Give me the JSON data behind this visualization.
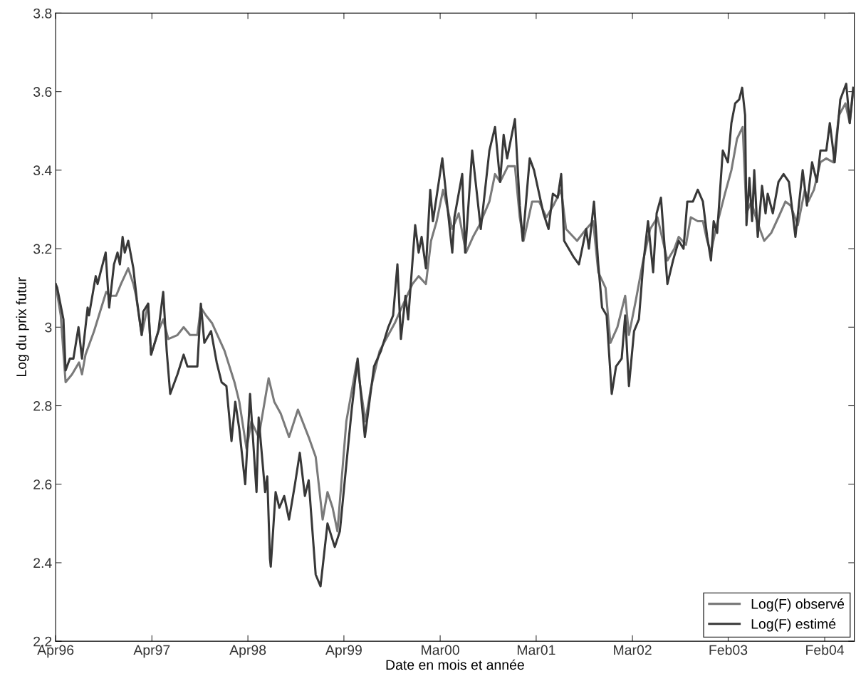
{
  "chart_data": {
    "type": "line",
    "xlabel": "Date en mois et année",
    "ylabel": "Log du prix futur",
    "xlim": [
      "1996-04-24",
      "2004-06-11"
    ],
    "ylim": [
      2.2,
      3.8
    ],
    "xticks": [
      {
        "value": "1996-04-24",
        "label": "Apr96"
      },
      {
        "value": "1997-04-17",
        "label": "Apr97"
      },
      {
        "value": "1998-04-09",
        "label": "Apr98"
      },
      {
        "value": "1999-04-01",
        "label": "Apr99"
      },
      {
        "value": "2000-03-24",
        "label": "Mar00"
      },
      {
        "value": "2001-03-16",
        "label": "Mar01"
      },
      {
        "value": "2002-03-09",
        "label": "Mar02"
      },
      {
        "value": "2003-02-28",
        "label": "Feb03"
      },
      {
        "value": "2004-02-22",
        "label": "Feb04"
      }
    ],
    "yticks": [
      2.2,
      2.4,
      2.6,
      2.8,
      3,
      3.2,
      3.4,
      3.6,
      3.8
    ],
    "grid": false,
    "legend": "bottom right",
    "marker": "none",
    "line_style": "solid",
    "series": [
      {
        "name": "Log(F) observé",
        "color": "#7a7a7a",
        "x": [
          "1996-04-24",
          "1996-05-13",
          "1996-05-31",
          "1996-06-24",
          "1996-07-20",
          "1996-07-31",
          "1996-08-13",
          "1996-09-14",
          "1996-10-29",
          "1996-11-11",
          "1996-12-05",
          "1996-12-23",
          "1997-01-19",
          "1997-02-07",
          "1997-02-17",
          "1997-03-10",
          "1997-04-03",
          "1997-04-14",
          "1997-05-11",
          "1997-05-29",
          "1997-06-17",
          "1997-07-21",
          "1997-08-13",
          "1997-09-06",
          "1997-10-03",
          "1997-10-16",
          "1997-11-04",
          "1997-11-27",
          "1998-01-12",
          "1998-02-18",
          "1998-03-08",
          "1998-04-04",
          "1998-04-22",
          "1998-05-19",
          "1998-06-25",
          "1998-07-16",
          "1998-08-09",
          "1998-09-09",
          "1998-10-12",
          "1998-11-21",
          "1998-12-17",
          "1999-01-12",
          "1999-01-30",
          "1999-02-18",
          "1999-03-08",
          "1999-04-10",
          "1999-05-19",
          "1999-06-20",
          "1999-07-09",
          "1999-08-12",
          "1999-09-13",
          "1999-10-07",
          "1999-11-02",
          "1999-12-12",
          "2000-01-04",
          "2000-01-31",
          "2000-02-19",
          "2000-03-11",
          "2000-04-04",
          "2000-05-08",
          "2000-06-01",
          "2000-06-28",
          "2000-07-24",
          "2000-08-17",
          "2000-09-23",
          "2000-10-14",
          "2000-11-02",
          "2000-12-01",
          "2000-12-27",
          "2001-01-14",
          "2001-01-28",
          "2001-03-01",
          "2001-03-27",
          "2001-04-23",
          "2001-05-19",
          "2001-06-17",
          "2001-07-05",
          "2001-08-15",
          "2001-09-18",
          "2001-10-14",
          "2001-11-02",
          "2001-11-29",
          "2001-12-17",
          "2002-01-12",
          "2002-02-10",
          "2002-02-24",
          "2002-03-22",
          "2002-04-18",
          "2002-05-14",
          "2002-06-10",
          "2002-07-17",
          "2002-08-12",
          "2002-08-28",
          "2002-09-24",
          "2002-10-12",
          "2002-11-07",
          "2002-11-26",
          "2002-12-12",
          "2002-12-26",
          "2003-01-13",
          "2003-02-16",
          "2003-03-12",
          "2003-04-02",
          "2003-04-23",
          "2003-05-07",
          "2003-05-25",
          "2003-06-15",
          "2003-07-12",
          "2003-08-07",
          "2003-09-03",
          "2003-09-29",
          "2003-10-18",
          "2003-11-14",
          "2003-12-10",
          "2003-12-23",
          "2004-01-13",
          "2004-02-06",
          "2004-02-28",
          "2004-03-25",
          "2004-04-15",
          "2004-05-09",
          "2004-05-25",
          "2004-06-07"
        ],
        "values": [
          3.11,
          3.03,
          2.86,
          2.88,
          2.91,
          2.88,
          2.93,
          2.99,
          3.09,
          3.08,
          3.08,
          3.11,
          3.15,
          3.11,
          3.08,
          2.98,
          3.06,
          2.93,
          2.99,
          3.02,
          2.97,
          2.98,
          3.0,
          2.98,
          2.98,
          3.05,
          3.03,
          3.01,
          2.94,
          2.86,
          2.81,
          2.69,
          2.76,
          2.72,
          2.87,
          2.81,
          2.78,
          2.72,
          2.79,
          2.72,
          2.67,
          2.51,
          2.58,
          2.54,
          2.48,
          2.76,
          2.91,
          2.76,
          2.84,
          2.94,
          2.98,
          3.01,
          3.05,
          3.11,
          3.13,
          3.11,
          3.22,
          3.27,
          3.35,
          3.25,
          3.29,
          3.19,
          3.23,
          3.26,
          3.32,
          3.39,
          3.37,
          3.41,
          3.41,
          3.28,
          3.22,
          3.32,
          3.32,
          3.28,
          3.31,
          3.35,
          3.25,
          3.22,
          3.25,
          3.27,
          3.14,
          3.1,
          2.96,
          3.0,
          3.08,
          2.98,
          3.07,
          3.17,
          3.25,
          3.28,
          3.17,
          3.2,
          3.23,
          3.21,
          3.28,
          3.27,
          3.27,
          3.22,
          3.19,
          3.25,
          3.34,
          3.4,
          3.48,
          3.51,
          3.29,
          3.32,
          3.27,
          3.22,
          3.24,
          3.28,
          3.32,
          3.31,
          3.26,
          3.35,
          3.32,
          3.35,
          3.42,
          3.43,
          3.42,
          3.54,
          3.57,
          3.52,
          3.6
        ]
      },
      {
        "name": "Log(F) estimé",
        "color": "#383838",
        "x": [
          "1996-04-24",
          "1996-04-30",
          "1996-05-23",
          "1996-05-31",
          "1996-06-16",
          "1996-06-29",
          "1996-07-18",
          "1996-07-31",
          "1996-08-21",
          "1996-08-26",
          "1996-09-20",
          "1996-09-27",
          "1996-10-08",
          "1996-10-27",
          "1996-11-09",
          "1996-11-27",
          "1996-12-10",
          "1996-12-19",
          "1996-12-29",
          "1997-01-06",
          "1997-01-19",
          "1997-02-07",
          "1997-02-20",
          "1997-03-10",
          "1997-03-16",
          "1997-04-03",
          "1997-04-14",
          "1997-05-11",
          "1997-05-29",
          "1997-06-11",
          "1997-06-24",
          "1997-07-21",
          "1997-08-13",
          "1997-08-27",
          "1997-10-03",
          "1997-10-16",
          "1997-10-29",
          "1997-11-23",
          "1997-12-14",
          "1998-01-01",
          "1998-01-19",
          "1998-02-07",
          "1998-02-21",
          "1998-03-08",
          "1998-03-30",
          "1998-04-17",
          "1998-05-11",
          "1998-05-19",
          "1998-06-12",
          "1998-06-20",
          "1998-06-30",
          "1998-07-03",
          "1998-07-21",
          "1998-08-04",
          "1998-08-22",
          "1998-09-09",
          "1998-10-01",
          "1998-10-19",
          "1998-11-07",
          "1998-11-21",
          "1998-12-17",
          "1999-01-04",
          "1999-01-30",
          "1999-02-26",
          "1999-03-17",
          "1999-04-10",
          "1999-04-30",
          "1999-05-22",
          "1999-06-18",
          "1999-07-22",
          "1999-08-17",
          "1999-09-13",
          "1999-10-01",
          "1999-10-17",
          "1999-10-30",
          "1999-11-16",
          "1999-11-26",
          "1999-12-22",
          "2000-01-04",
          "2000-01-15",
          "2000-01-31",
          "2000-02-16",
          "2000-02-26",
          "2000-04-01",
          "2000-05-08",
          "2000-05-16",
          "2000-06-14",
          "2000-06-25",
          "2000-07-21",
          "2000-08-06",
          "2000-08-22",
          "2000-09-23",
          "2000-10-14",
          "2000-11-02",
          "2000-11-15",
          "2000-11-28",
          "2000-12-27",
          "2001-01-14",
          "2001-01-25",
          "2001-02-20",
          "2001-03-08",
          "2001-03-27",
          "2001-04-12",
          "2001-05-01",
          "2001-05-17",
          "2001-06-04",
          "2001-06-17",
          "2001-06-28",
          "2001-08-01",
          "2001-08-22",
          "2001-09-18",
          "2001-09-28",
          "2001-10-17",
          "2001-11-02",
          "2001-11-16",
          "2001-12-03",
          "2001-12-22",
          "2002-01-07",
          "2002-01-28",
          "2002-02-10",
          "2002-02-24",
          "2002-03-15",
          "2002-04-02",
          "2002-04-18",
          "2002-05-06",
          "2002-05-25",
          "2002-06-07",
          "2002-06-23",
          "2002-07-17",
          "2002-08-07",
          "2002-08-28",
          "2002-09-15",
          "2002-09-29",
          "2002-10-20",
          "2002-11-07",
          "2002-11-26",
          "2002-12-12",
          "2002-12-26",
          "2003-01-05",
          "2003-01-18",
          "2003-02-08",
          "2003-02-27",
          "2003-03-12",
          "2003-03-26",
          "2003-04-10",
          "2003-04-21",
          "2003-05-02",
          "2003-05-07",
          "2003-05-18",
          "2003-05-28",
          "2003-06-05",
          "2003-06-18",
          "2003-07-04",
          "2003-07-17",
          "2003-07-25",
          "2003-08-13",
          "2003-09-03",
          "2003-09-22",
          "2003-10-12",
          "2003-11-05",
          "2003-12-02",
          "2003-12-18",
          "2004-01-06",
          "2004-01-24",
          "2004-02-06",
          "2004-02-28",
          "2004-03-12",
          "2004-03-30",
          "2004-04-20",
          "2004-05-12",
          "2004-05-25",
          "2004-06-07"
        ],
        "values": [
          3.11,
          3.1,
          3.02,
          2.89,
          2.92,
          2.92,
          3.0,
          2.92,
          3.05,
          3.03,
          3.13,
          3.11,
          3.14,
          3.19,
          3.05,
          3.16,
          3.19,
          3.16,
          3.23,
          3.19,
          3.22,
          3.15,
          3.07,
          2.98,
          3.04,
          3.06,
          2.93,
          2.99,
          3.09,
          2.94,
          2.83,
          2.88,
          2.93,
          2.9,
          2.9,
          3.06,
          2.96,
          2.99,
          2.91,
          2.86,
          2.85,
          2.71,
          2.81,
          2.74,
          2.6,
          2.83,
          2.58,
          2.77,
          2.58,
          2.62,
          2.41,
          2.39,
          2.58,
          2.54,
          2.57,
          2.51,
          2.6,
          2.68,
          2.57,
          2.61,
          2.37,
          2.34,
          2.5,
          2.44,
          2.48,
          2.65,
          2.79,
          2.92,
          2.72,
          2.9,
          2.94,
          3.0,
          3.03,
          3.16,
          2.97,
          3.08,
          3.02,
          3.26,
          3.19,
          3.23,
          3.15,
          3.35,
          3.27,
          3.43,
          3.19,
          3.28,
          3.39,
          3.19,
          3.45,
          3.35,
          3.25,
          3.45,
          3.51,
          3.37,
          3.49,
          3.43,
          3.53,
          3.31,
          3.22,
          3.43,
          3.4,
          3.34,
          3.29,
          3.25,
          3.34,
          3.33,
          3.39,
          3.22,
          3.18,
          3.16,
          3.25,
          3.2,
          3.32,
          3.16,
          3.05,
          3.03,
          2.83,
          2.9,
          2.92,
          3.03,
          2.85,
          2.99,
          3.02,
          3.16,
          3.27,
          3.14,
          3.29,
          3.33,
          3.11,
          3.17,
          3.22,
          3.2,
          3.32,
          3.32,
          3.35,
          3.32,
          3.23,
          3.17,
          3.27,
          3.24,
          3.45,
          3.42,
          3.52,
          3.57,
          3.58,
          3.61,
          3.54,
          3.26,
          3.38,
          3.27,
          3.4,
          3.23,
          3.36,
          3.29,
          3.34,
          3.29,
          3.37,
          3.39,
          3.37,
          3.23,
          3.4,
          3.31,
          3.42,
          3.37,
          3.45,
          3.45,
          3.52,
          3.42,
          3.58,
          3.62,
          3.52,
          3.61
        ]
      }
    ]
  }
}
